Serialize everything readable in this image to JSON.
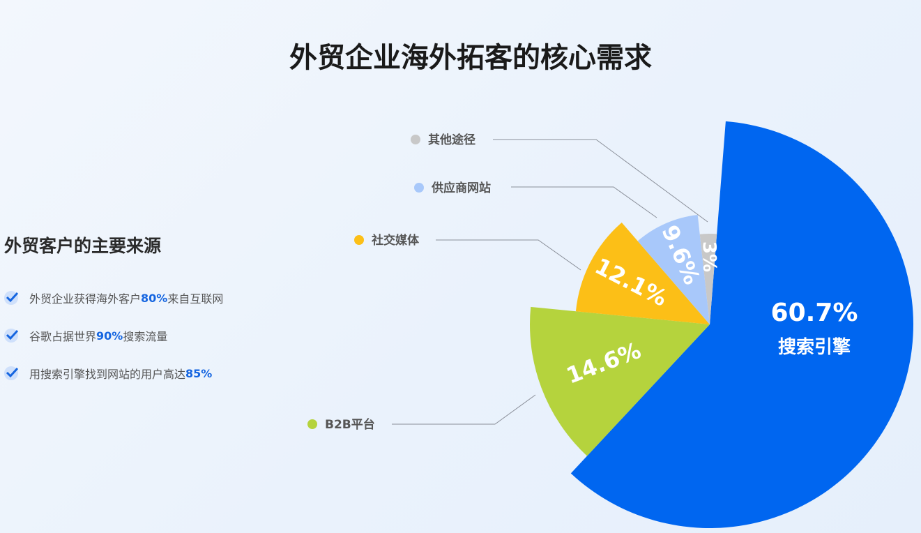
{
  "title": "外贸企业海外拓客的核心需求",
  "side": {
    "title": "外贸客户的主要来源",
    "facts": [
      {
        "pre": "外贸企业获得海外客户",
        "hl": "80%",
        "post": "来自互联网",
        "icon": "check-icon"
      },
      {
        "pre": "谷歌占据世界",
        "hl": "90%",
        "post": "搜索流量",
        "icon": "check-icon"
      },
      {
        "pre": "用搜索引擎找到网站的用户高达",
        "hl": "85%",
        "post": "",
        "icon": "check-icon"
      }
    ]
  },
  "chart_data": {
    "type": "pie",
    "variant": "rose (radius varies with value)",
    "title": "外贸企业海外拓客的核心需求",
    "slices": [
      {
        "name": "搜索引擎",
        "value": 60.7,
        "label": "60.7%",
        "color": "#0066f0"
      },
      {
        "name": "B2B平台",
        "value": 14.6,
        "label": "14.6%",
        "color": "#b5d33d"
      },
      {
        "name": "社交媒体",
        "value": 12.1,
        "label": "12.1%",
        "color": "#fcbf17"
      },
      {
        "name": "供应商网站",
        "value": 9.6,
        "label": "9.6%",
        "color": "#a8c8fa"
      },
      {
        "name": "其他途径",
        "value": 3,
        "label": "3%",
        "color": "#c8c8c8"
      }
    ]
  }
}
